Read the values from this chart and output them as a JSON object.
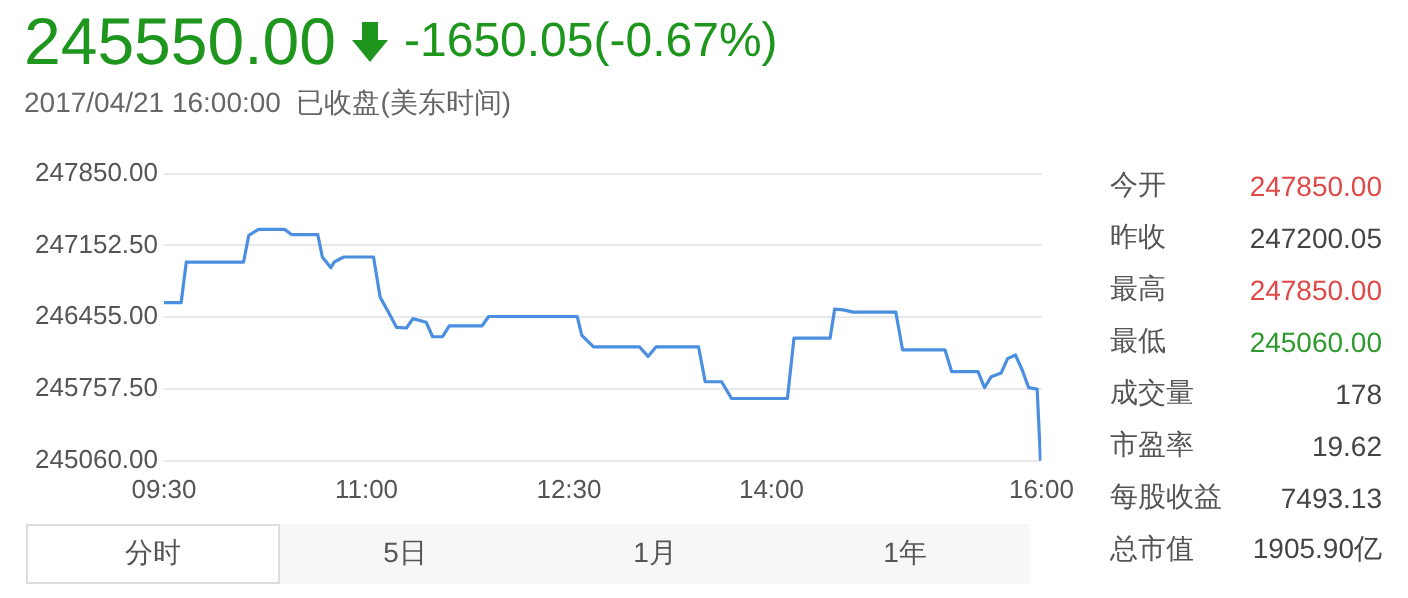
{
  "chart_data": {
    "type": "line",
    "title": "245550.00",
    "subtitle": "2017/04/21 16:00:00  已收盘(美东时间)",
    "annotations": [
      "-1650.05(-0.67%)",
      "今开",
      "247850.00",
      "昨收",
      "247200.05",
      "最高",
      "247850.00",
      "最低",
      "245060.00",
      "成交量",
      "178",
      "市盈率",
      "19.62",
      "每股收益",
      "7493.13",
      "总市值",
      "1905.90亿",
      "分时",
      "5日",
      "1月",
      "1年"
    ],
    "series": [
      {
        "color": "#4a8fe0",
        "x": [
          9.5,
          9.627,
          9.665,
          10.089,
          10.128,
          10.2,
          10.395,
          10.444,
          10.639,
          10.673,
          10.736,
          10.76,
          10.809,
          10.833,
          11.052,
          11.101,
          11.174,
          11.223,
          11.296,
          11.344,
          11.442,
          11.49,
          11.563,
          11.613,
          11.855,
          11.905,
          12.561,
          12.595,
          12.682,
          13.023,
          13.086,
          13.144,
          13.46,
          13.509,
          13.631,
          13.704,
          14.118,
          14.167,
          14.434,
          14.468,
          14.532,
          14.605,
          14.921,
          14.971,
          15.285,
          15.335,
          15.53,
          15.578,
          15.628,
          15.701,
          15.749,
          15.807,
          15.856,
          15.905,
          15.968,
          15.993
        ],
        "values": [
          246596,
          246596,
          246990,
          246990,
          247250,
          247308,
          247308,
          247258,
          247258,
          247040,
          246935,
          246990,
          247025,
          247040,
          247040,
          246650,
          246476,
          246356,
          246350,
          246441,
          246406,
          246265,
          246265,
          246370,
          246370,
          246462,
          246462,
          246279,
          246166,
          246166,
          246074,
          246166,
          246166,
          245828,
          245828,
          245665,
          245665,
          246251,
          246251,
          246533,
          246526,
          246504,
          246504,
          246138,
          246138,
          245926,
          245926,
          245771,
          245877,
          245912,
          246053,
          246088,
          245947,
          245771,
          245757,
          245060
        ]
      }
    ],
    "xlim": [
      9.5,
      16
    ],
    "xticks": [
      {
        "value": 9.5,
        "label": "09:30"
      },
      {
        "value": 11,
        "label": "11:00"
      },
      {
        "value": 12.5,
        "label": "12:30"
      },
      {
        "value": 14,
        "label": "14:00"
      },
      {
        "value": 16,
        "label": "16:00"
      }
    ],
    "ylim": [
      245060,
      247850
    ],
    "yticks": [
      {
        "value": 245060,
        "label": "245060.00"
      },
      {
        "value": 245757.5,
        "label": "245757.50"
      },
      {
        "value": 246455,
        "label": "246455.00"
      },
      {
        "value": 247152.5,
        "label": "247152.50"
      },
      {
        "value": 247850,
        "label": "247850.00"
      }
    ],
    "grid": "y",
    "marker": "none",
    "line_style": "solid",
    "legend": false
  }
}
